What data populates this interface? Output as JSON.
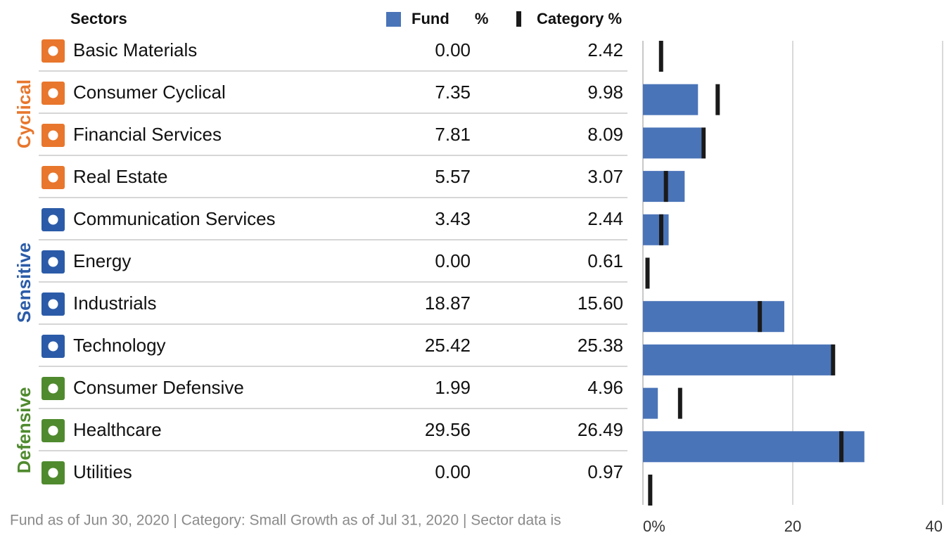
{
  "chart_data": {
    "type": "bar",
    "header": "Sectors",
    "groups": [
      {
        "name": "Cyclical",
        "color": "#e8762c",
        "sectors": [
          "Basic Materials",
          "Consumer Cyclical",
          "Financial Services",
          "Real Estate"
        ]
      },
      {
        "name": "Sensitive",
        "color": "#2b5ba8",
        "sectors": [
          "Communication Services",
          "Energy",
          "Industrials",
          "Technology"
        ]
      },
      {
        "name": "Defensive",
        "color": "#4f8a2e",
        "sectors": [
          "Consumer Defensive",
          "Healthcare",
          "Utilities"
        ]
      }
    ],
    "series": [
      {
        "name": "Fund %",
        "color": "#4a74b8",
        "values": [
          0,
          7.35,
          7.81,
          5.57,
          3.43,
          0,
          18.87,
          25.42,
          1.99,
          29.56,
          0
        ],
        "value_labels": [
          "0.00",
          "7.35",
          "7.81",
          "5.57",
          "3.43",
          "0.00",
          "18.87",
          "25.42",
          "1.99",
          "29.56",
          "0.00"
        ]
      },
      {
        "name": "Category %",
        "color": "#1a1a1a",
        "values": [
          2.42,
          9.98,
          8.09,
          3.07,
          2.44,
          0.61,
          15.6,
          25.38,
          4.96,
          26.49,
          0.97
        ],
        "value_labels": [
          "2.42",
          "9.98",
          "8.09",
          "3.07",
          "2.44",
          "0.61",
          "15.60",
          "25.38",
          "4.96",
          "26.49",
          "0.97"
        ]
      }
    ],
    "xlim": [
      0,
      40
    ],
    "xticks": [
      {
        "value": 0,
        "label": "0%"
      },
      20,
      40
    ],
    "grid": true,
    "footnote": "Fund as of Jun 30, 2020 | Category: Small Growth as of Jul 31, 2020 | Sector data is"
  }
}
